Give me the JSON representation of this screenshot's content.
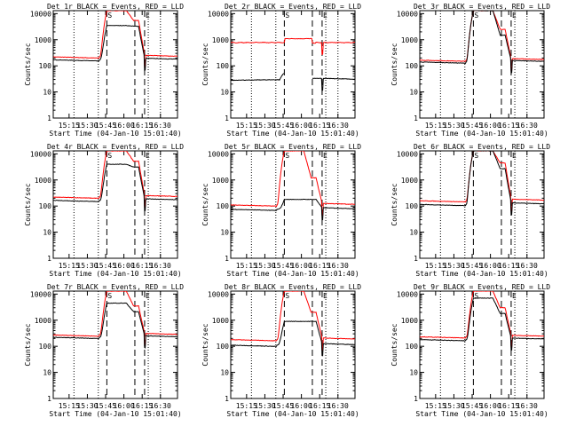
{
  "chart_data": [
    {
      "type": "line",
      "title": "Det 1r  BLACK = Events, RED = LLD",
      "base_black": 170,
      "base_red": 220,
      "peak_red": 13000,
      "peak_black": 3500,
      "shoulder": 5500,
      "dip": true
    },
    {
      "type": "line",
      "title": "Det 2r  BLACK = Events, RED = LLD",
      "base_black": 28,
      "base_red": 780,
      "peak_red": 1100,
      "peak_black": 55,
      "shoulder": 820,
      "dip": true,
      "flat": true
    },
    {
      "type": "line",
      "title": "Det 3r  BLACK = Events, RED = LLD",
      "base_black": 140,
      "base_red": 165,
      "peak_red": 13000,
      "peak_black": 13000,
      "shoulder": 2500,
      "dip": true
    },
    {
      "type": "line",
      "title": "Det 4r  BLACK = Events, RED = LLD",
      "base_black": 165,
      "base_red": 220,
      "peak_red": 13000,
      "peak_black": 4000,
      "shoulder": 5200,
      "dip": true
    },
    {
      "type": "line",
      "title": "Det 5r  BLACK = Events, RED = LLD",
      "base_black": 75,
      "base_red": 110,
      "peak_red": 13000,
      "peak_black": 180,
      "shoulder": 1200,
      "dip": true
    },
    {
      "type": "line",
      "title": "Det 6r  BLACK = Events, RED = LLD",
      "base_black": 115,
      "base_red": 160,
      "peak_red": 13000,
      "peak_black": 13000,
      "shoulder": 4500,
      "dip": true
    },
    {
      "type": "line",
      "title": "Det 7r  BLACK = Events, RED = LLD",
      "base_black": 220,
      "base_red": 270,
      "peak_red": 13000,
      "peak_black": 4500,
      "shoulder": 3500,
      "dip": true
    },
    {
      "type": "line",
      "title": "Det 8r  BLACK = Events, RED = LLD",
      "base_black": 110,
      "base_red": 180,
      "peak_red": 13000,
      "peak_black": 900,
      "shoulder": 2000,
      "dip": true
    },
    {
      "type": "line",
      "title": "Det 9r  BLACK = Events, RED = LLD",
      "base_black": 180,
      "base_red": 230,
      "peak_red": 13000,
      "peak_black": 7000,
      "shoulder": 3000,
      "dip": true
    }
  ],
  "axes": {
    "ylabel": "Counts/sec",
    "xlabel": "Start Time (04-Jan-10 15:01:40)",
    "ylim": [
      1,
      13000
    ],
    "yscale": "log",
    "y_ticks": [
      "1",
      "10",
      "100",
      "1000",
      "10000"
    ],
    "x_ticks": [
      "15:15",
      "15:30",
      "15:45",
      "16:00",
      "16:15",
      "16:30"
    ],
    "x_range_min": [
      0,
      102
    ],
    "x_tick_min": [
      13,
      28,
      43,
      58,
      73,
      88
    ],
    "dotted_min": [
      17,
      37,
      78,
      88
    ],
    "dashed_min": [
      44,
      67,
      75
    ],
    "marker_S": "S",
    "marker_E": "E"
  },
  "colors": {
    "events": "#000000",
    "lld": "#ff0000"
  }
}
